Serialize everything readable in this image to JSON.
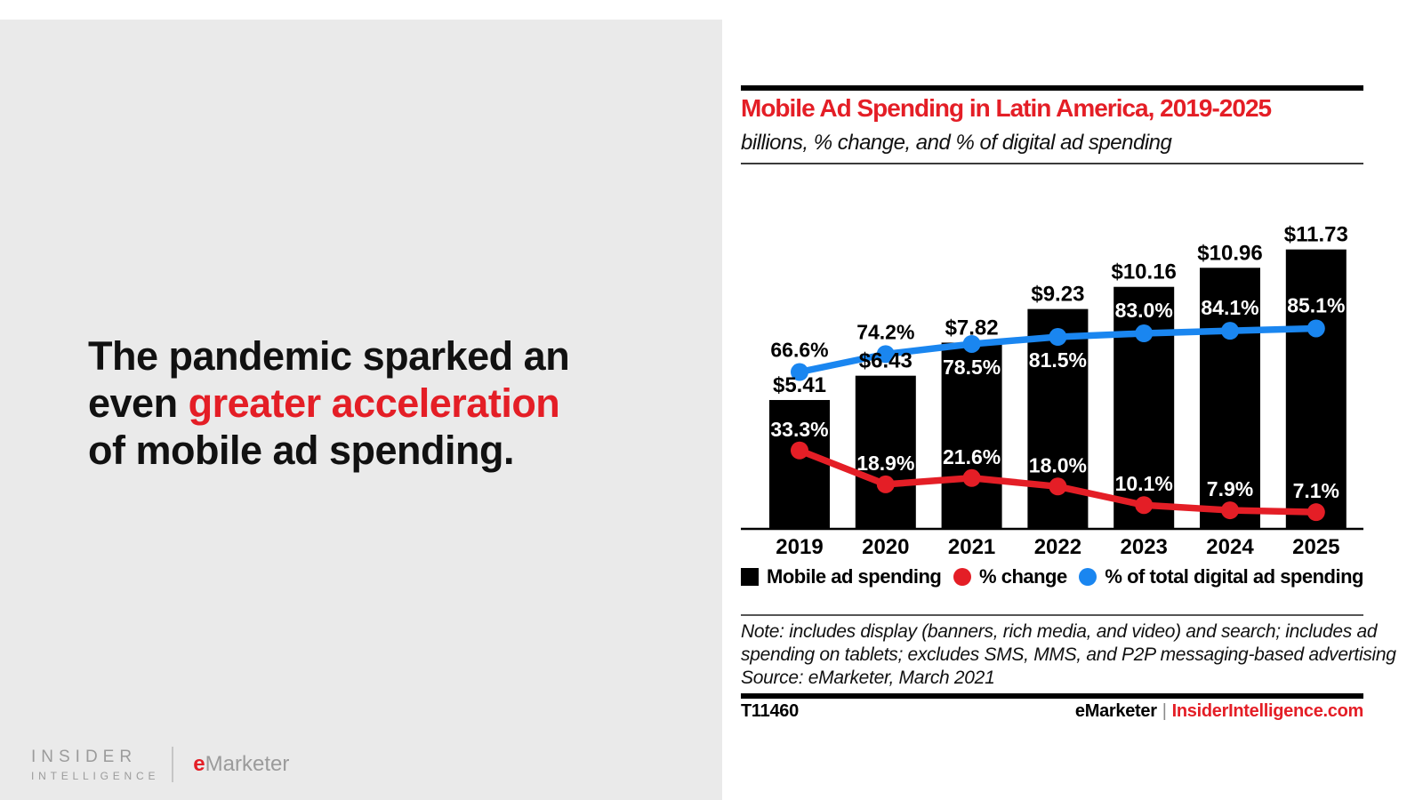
{
  "colors": {
    "red": "#e41e26",
    "blue": "#1a86f0",
    "bar_black": "#000000",
    "panel_gray": "#eaeaea",
    "logo_gray": "#9b9b9b"
  },
  "left_panel": {
    "headline_lines": [
      {
        "segments": [
          {
            "text": "The pandemic sparked an",
            "red": false
          }
        ]
      },
      {
        "segments": [
          {
            "text": "even ",
            "red": false
          },
          {
            "text": "greater acceleration",
            "red": true
          }
        ]
      },
      {
        "segments": [
          {
            "text": "of mobile ad spending.",
            "red": false
          }
        ]
      }
    ],
    "logo": {
      "insider_line1": "INSIDER",
      "insider_line2": "INTELLIGENCE",
      "emarketer_e": "e",
      "emarketer_rest": "Marketer"
    }
  },
  "chart": {
    "title": "Mobile Ad Spending in Latin America, 2019-2025",
    "subtitle": "billions, % change, and % of digital ad spending",
    "note_lines": [
      "Note: includes display (banners, rich media, and video) and search; includes ad",
      "spending on tablets; excludes SMS, MMS, and P2P messaging-based advertising",
      "Source: eMarketer, March 2021"
    ],
    "footer": {
      "chart_id": "T11460",
      "brand": "eMarketer",
      "separator": "|",
      "site": "InsiderIntelligence.com"
    }
  },
  "chart_data": {
    "type": "bar+line combo",
    "title": "Mobile Ad Spending in Latin America, 2019-2025",
    "subtitle": "billions, % change, and % of digital ad spending",
    "categories": [
      "2019",
      "2020",
      "2021",
      "2022",
      "2023",
      "2024",
      "2025"
    ],
    "series": [
      {
        "name": "Mobile ad spending",
        "type": "bar",
        "unit": "billions USD",
        "color": "#000000",
        "values": [
          5.41,
          6.43,
          7.82,
          9.23,
          10.16,
          10.96,
          11.73
        ],
        "labels": [
          "$5.41",
          "$6.43",
          "$7.82",
          "$9.23",
          "$10.16",
          "$10.96",
          "$11.73"
        ]
      },
      {
        "name": "% change",
        "type": "line",
        "unit": "percent",
        "color": "#e41e26",
        "values": [
          33.3,
          18.9,
          21.6,
          18.0,
          10.1,
          7.9,
          7.1
        ],
        "labels": [
          "33.3%",
          "18.9%",
          "21.6%",
          "18.0%",
          "10.1%",
          "7.9%",
          "7.1%"
        ]
      },
      {
        "name": "% of total digital ad spending",
        "type": "line",
        "unit": "percent",
        "color": "#1a86f0",
        "values": [
          66.6,
          74.2,
          78.5,
          81.5,
          83.0,
          84.1,
          85.1
        ],
        "labels": [
          "66.6%",
          "74.2%",
          "78.5%",
          "81.5%",
          "83.0%",
          "84.1%",
          "85.1%"
        ]
      }
    ],
    "layout_hints": {
      "grid": false,
      "y_axis_labels_shown": false,
      "data_labels_shown": true,
      "legend_position": "bottom",
      "bar_value_axis_range_billions": [
        0,
        13
      ],
      "pct_value_axis_range": [
        0,
        90
      ]
    }
  }
}
